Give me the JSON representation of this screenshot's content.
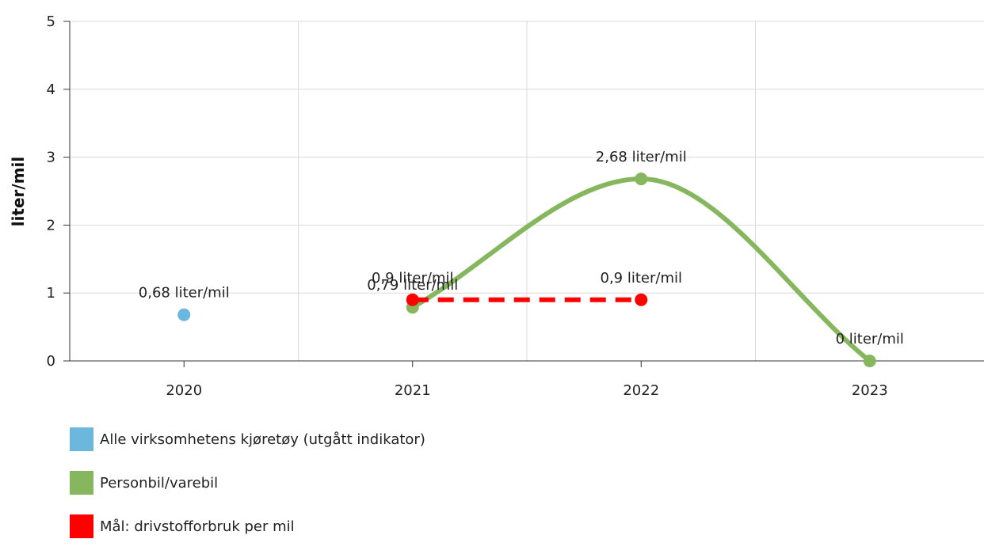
{
  "chart_data": {
    "type": "line",
    "categories": [
      "2020",
      "2021",
      "2022",
      "2023"
    ],
    "ylabel": "liter/mil",
    "ylim": [
      0,
      5
    ],
    "yticks": [
      0,
      1,
      2,
      3,
      4,
      5
    ],
    "grid": true,
    "legend_position": "bottom-left",
    "series": [
      {
        "name": "Alle virksomhetens kjøretøy (utgått indikator)",
        "color": "#6bb7dd",
        "values": [
          0.68,
          null,
          null,
          null
        ],
        "labels": [
          "0,68 liter/mil",
          null,
          null,
          null
        ],
        "line": "none"
      },
      {
        "name": "Personbil/varebil",
        "color": "#86b75f",
        "values": [
          null,
          0.79,
          2.68,
          0
        ],
        "labels": [
          null,
          "0,79 liter/mil",
          "2,68 liter/mil",
          "0 liter/mil"
        ],
        "line": "smooth"
      },
      {
        "name": "Mål: drivstofforbruk per mil",
        "color": "#ff0000",
        "values": [
          null,
          0.9,
          0.9,
          null
        ],
        "labels": [
          null,
          "0,9 liter/mil",
          "0,9 liter/mil",
          null
        ],
        "line": "dashed"
      }
    ]
  }
}
